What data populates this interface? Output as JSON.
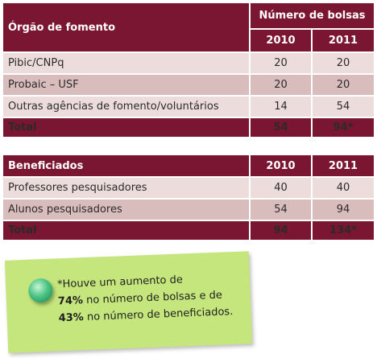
{
  "table1": {
    "header_label": "Órgão de fomento",
    "header_group": "Número de bolsas",
    "col_2010": "2010",
    "col_2011": "2011",
    "rows": [
      {
        "label": "Pibic/CNPq",
        "v2010": "20",
        "v2011": "20"
      },
      {
        "label": "Probaic – USF",
        "v2010": "20",
        "v2011": "20"
      },
      {
        "label": "Outras agências de fomento/voluntários",
        "v2010": "14",
        "v2011": "54"
      }
    ],
    "total": {
      "label": "Total",
      "v2010": "54",
      "v2011": "94*"
    }
  },
  "table2": {
    "header_label": "Beneficiados",
    "col_2010": "2010",
    "col_2011": "2011",
    "rows": [
      {
        "label": "Professores pesquisadores",
        "v2010": "40",
        "v2011": "40"
      },
      {
        "label": "Alunos pesquisadores",
        "v2010": "54",
        "v2011": "94"
      }
    ],
    "total": {
      "label": "Total",
      "v2010": "94",
      "v2011": "134*"
    }
  },
  "note": {
    "line1": "*Houve um aumento de",
    "pct1": "74%",
    "line2": " no número de bolsas e de",
    "pct2": "43%",
    "line3": " no número de beneficiados."
  },
  "colors": {
    "header": "#7a1532",
    "row_light": "#ecdcdc",
    "row_dark": "#d9bcbc",
    "note": "#c5e67c",
    "pin": "#4cc485"
  }
}
